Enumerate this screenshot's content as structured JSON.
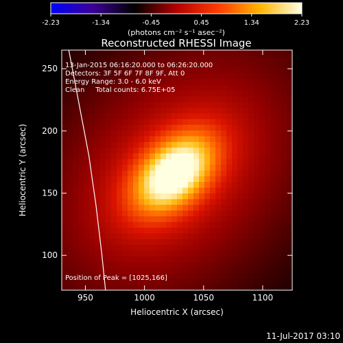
{
  "chart_data": {
    "type": "heatmap",
    "title": "Reconstructed RHESSI Image",
    "xlabel": "Heliocentric X (arcsec)",
    "ylabel": "Heliocentric Y (arcsec)",
    "xlim": [
      930,
      1125
    ],
    "ylim": [
      72,
      265
    ],
    "x_ticks": [
      950,
      1000,
      1050,
      1100
    ],
    "y_ticks": [
      100,
      150,
      200,
      250
    ],
    "colorbar": {
      "label": "(photons cm⁻² s⁻¹ asec⁻²)",
      "range": [
        -2.23,
        2.23
      ],
      "ticks": [
        "-2.23",
        "-1.34",
        "-0.45",
        "0.45",
        "1.34",
        "2.23"
      ],
      "colors": [
        "#0000ff",
        "#3c0096",
        "#000000",
        "#b40000",
        "#ff3c00",
        "#ffb400",
        "#ffffe6"
      ]
    },
    "annotations": [
      "13-Jan-2015 06:16:20.000 to 06:26:20.000",
      "Detectors: 3F 5F 6F 7F 8F 9F, Att 0",
      "Energy Range: 3.0 - 6.0 keV",
      "Clean     Total counts: 6.75E+05"
    ],
    "peak_label": "Position of Peak = [1025,166]",
    "peak": {
      "x": 1025,
      "y": 166,
      "value": 2.23
    },
    "source_sigma_major": 32,
    "source_sigma_minor": 20,
    "source_angle_deg": 40,
    "limb_curve": [
      [
        936,
        265
      ],
      [
        945,
        220
      ],
      [
        953,
        180
      ],
      [
        959,
        140
      ],
      [
        964,
        100
      ],
      [
        967,
        72
      ]
    ],
    "timestamp": "11-Jul-2017 03:10"
  }
}
